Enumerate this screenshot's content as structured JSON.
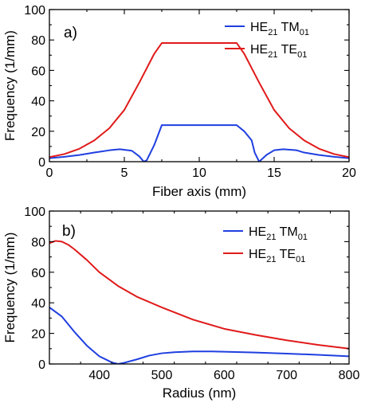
{
  "chart_data": [
    {
      "type": "line",
      "panel_label": "a)",
      "xlabel": "Fiber axis (mm)",
      "ylabel": "Frequency (1/mm)",
      "xlim": [
        0,
        20
      ],
      "ylim": [
        0,
        100
      ],
      "xticks": [
        0,
        5,
        10,
        15,
        20
      ],
      "yticks": [
        0,
        20,
        40,
        60,
        80,
        100
      ],
      "grid": false,
      "legend_position": "top-right",
      "series": [
        {
          "name": "HE21 TM01",
          "legend": {
            "a": "HE",
            "a_sub": "21",
            "b": " TM",
            "b_sub": "01"
          },
          "color": "#1f3fe0",
          "x": [
            0,
            1,
            2,
            3,
            4,
            4.7,
            5.5,
            6.0,
            6.3,
            6.5,
            7.0,
            7.5,
            8,
            9,
            10,
            11,
            12,
            12.5,
            13,
            13.5,
            13.7,
            14.0,
            14.5,
            15,
            15.6,
            16.5,
            17,
            18,
            19,
            20
          ],
          "y": [
            2.3,
            3.2,
            4.4,
            6.0,
            7.5,
            8.2,
            7.2,
            3.5,
            0,
            1.0,
            11,
            24,
            24,
            24,
            24,
            24,
            24,
            24,
            20,
            14,
            6,
            0,
            4.5,
            7.5,
            8.2,
            7.5,
            6.0,
            4.4,
            3.2,
            2.3
          ]
        },
        {
          "name": "HE21 TE01",
          "legend": {
            "a": "HE",
            "a_sub": "21",
            "b": " TE",
            "b_sub": "01"
          },
          "color": "#e01a1a",
          "x": [
            0,
            1,
            2,
            3,
            4,
            5,
            6,
            7,
            7.5,
            8,
            9,
            10,
            11,
            12,
            12.5,
            13,
            14,
            15,
            16,
            17,
            18,
            19,
            20
          ],
          "y": [
            3,
            5,
            8.5,
            14,
            22,
            34,
            52,
            71,
            78,
            78,
            78,
            78,
            78,
            78,
            78,
            71,
            52,
            34,
            22,
            14,
            8.5,
            5,
            3
          ]
        }
      ]
    },
    {
      "type": "line",
      "panel_label": "b)",
      "xlabel": "Radius (nm)",
      "ylabel": "Frequency (1/mm)",
      "xlim": [
        320,
        800
      ],
      "ylim": [
        0,
        100
      ],
      "xticks": [
        400,
        500,
        600,
        700,
        800
      ],
      "yticks": [
        0,
        20,
        40,
        60,
        80,
        100
      ],
      "grid": false,
      "legend_position": "top-right",
      "series": [
        {
          "name": "HE21 TM01",
          "legend": {
            "a": "HE",
            "a_sub": "21",
            "b": " TM",
            "b_sub": "01"
          },
          "color": "#1f3fe0",
          "x": [
            320,
            340,
            360,
            380,
            400,
            420,
            430,
            440,
            460,
            480,
            500,
            520,
            550,
            580,
            600,
            650,
            700,
            750,
            800
          ],
          "y": [
            37,
            31,
            21,
            12,
            5,
            1,
            0,
            0.8,
            3,
            5.5,
            7,
            7.7,
            8.2,
            8.2,
            8,
            7.5,
            6.8,
            6,
            5
          ]
        },
        {
          "name": "HE21 TE01",
          "legend": {
            "a": "HE",
            "a_sub": "21",
            "b": " TE",
            "b_sub": "01"
          },
          "color": "#e01a1a",
          "x": [
            320,
            330,
            340,
            350,
            360,
            380,
            400,
            430,
            460,
            500,
            550,
            600,
            650,
            700,
            750,
            800
          ],
          "y": [
            79,
            80.5,
            80,
            78,
            75,
            68,
            60,
            51,
            44,
            37,
            29,
            23,
            19,
            15.5,
            12.5,
            10
          ]
        }
      ]
    }
  ]
}
